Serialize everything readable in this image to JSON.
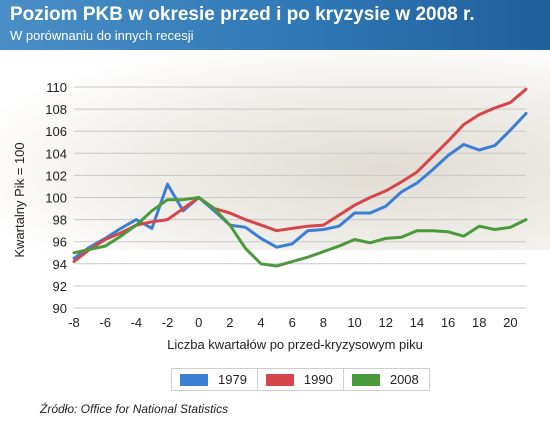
{
  "header": {
    "title": "Poziom PKB w okresie przed i po kryzysie w 2008 r.",
    "subtitle": "W porównaniu do innych recesji"
  },
  "source": "Źródło: Office for National Statistics",
  "colors": {
    "header": "#2f78b6",
    "s1979": "#3a7fd5",
    "s1990": "#d6454a",
    "s2008": "#4a9a3c"
  },
  "chart_data": {
    "type": "line",
    "xlabel": "Liczba kwartałów po przed-kryzysowym piku",
    "ylabel": "Kwartalny Pik = 100",
    "xlim": [
      -8,
      21
    ],
    "ylim": [
      90,
      110
    ],
    "x_ticks": [
      -8,
      -6,
      -4,
      -2,
      0,
      2,
      4,
      6,
      8,
      10,
      12,
      14,
      16,
      18,
      20
    ],
    "y_ticks": [
      90,
      92,
      94,
      96,
      98,
      100,
      102,
      104,
      106,
      108,
      110
    ],
    "grid": true,
    "legend_position": "bottom",
    "series": [
      {
        "name": "1979",
        "color": "#3a7fd5",
        "x": [
          -8,
          -7,
          -6,
          -5,
          -4,
          -3,
          -2,
          -1,
          0,
          1,
          2,
          3,
          4,
          5,
          6,
          7,
          8,
          9,
          10,
          11,
          12,
          13,
          14,
          15,
          16,
          17,
          18,
          19,
          20,
          21
        ],
        "y": [
          94.5,
          95.5,
          96.3,
          97.2,
          98.0,
          97.2,
          101.2,
          98.8,
          100.0,
          98.8,
          97.5,
          97.3,
          96.3,
          95.5,
          95.8,
          97.0,
          97.1,
          97.4,
          98.6,
          98.6,
          99.2,
          100.5,
          101.3,
          102.5,
          103.8,
          104.8,
          104.3,
          104.7,
          106.1,
          107.6
        ]
      },
      {
        "name": "1990",
        "color": "#d6454a",
        "x": [
          -8,
          -7,
          -6,
          -5,
          -4,
          -3,
          -2,
          -1,
          0,
          1,
          2,
          3,
          4,
          5,
          6,
          7,
          8,
          9,
          10,
          11,
          12,
          13,
          14,
          15,
          16,
          17,
          18,
          19,
          20,
          21
        ],
        "y": [
          94.2,
          95.3,
          96.2,
          96.8,
          97.5,
          97.8,
          98.0,
          99.0,
          100.0,
          99.0,
          98.6,
          98.0,
          97.5,
          97.0,
          97.2,
          97.4,
          97.5,
          98.4,
          99.3,
          100.0,
          100.6,
          101.4,
          102.3,
          103.7,
          105.1,
          106.6,
          107.5,
          108.1,
          108.6,
          109.8
        ]
      },
      {
        "name": "2008",
        "color": "#4a9a3c",
        "x": [
          -8,
          -7,
          -6,
          -5,
          -4,
          -3,
          -2,
          -1,
          0,
          1,
          2,
          3,
          4,
          5,
          6,
          7,
          8,
          9,
          10,
          11,
          12,
          13,
          14,
          15,
          16,
          17,
          18,
          19,
          20,
          21
        ],
        "y": [
          95.0,
          95.3,
          95.6,
          96.5,
          97.5,
          98.8,
          99.8,
          99.8,
          100.0,
          99.0,
          97.5,
          95.4,
          94.0,
          93.8,
          94.2,
          94.6,
          95.1,
          95.6,
          96.2,
          95.9,
          96.3,
          96.4,
          97.0,
          97.0,
          96.9,
          96.5,
          97.4,
          97.1,
          97.3,
          98.0
        ]
      }
    ]
  }
}
